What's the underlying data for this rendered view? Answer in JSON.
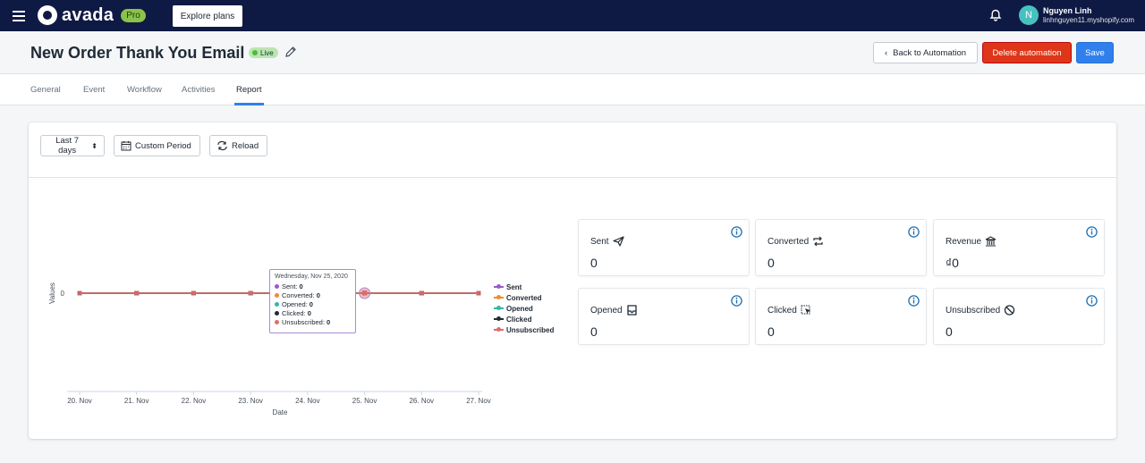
{
  "topbar": {
    "logo_text": "avada",
    "plan_badge": "Pro",
    "explore_label": "Explore plans",
    "user_initial": "N",
    "user_name": "Nguyen Linh",
    "user_shop": "linhnguyen11.myshopify.com"
  },
  "header": {
    "title": "New Order Thank You Email",
    "status": "Live",
    "back_label": "Back to Automation",
    "delete_label": "Delete automation",
    "save_label": "Save"
  },
  "tabs": [
    {
      "label": "General"
    },
    {
      "label": "Event"
    },
    {
      "label": "Workflow"
    },
    {
      "label": "Activities"
    },
    {
      "label": "Report"
    }
  ],
  "active_tab": "Report",
  "toolbar": {
    "period_label": "Last 7 days",
    "custom_period_label": "Custom Period",
    "reload_label": "Reload"
  },
  "chart_data": {
    "type": "line",
    "xlabel": "Date",
    "ylabel": "Values",
    "categories": [
      "20. Nov",
      "21. Nov",
      "22. Nov",
      "23. Nov",
      "24. Nov",
      "25. Nov",
      "26. Nov",
      "27. Nov"
    ],
    "y_ticks": [
      "0"
    ],
    "series": [
      {
        "name": "Sent",
        "color": "#9b59d0",
        "values": [
          0,
          0,
          0,
          0,
          0,
          0,
          0,
          0
        ]
      },
      {
        "name": "Converted",
        "color": "#f08c2a",
        "values": [
          0,
          0,
          0,
          0,
          0,
          0,
          0,
          0
        ]
      },
      {
        "name": "Opened",
        "color": "#37b6a7",
        "values": [
          0,
          0,
          0,
          0,
          0,
          0,
          0,
          0
        ]
      },
      {
        "name": "Clicked",
        "color": "#212b36",
        "values": [
          0,
          0,
          0,
          0,
          0,
          0,
          0,
          0
        ]
      },
      {
        "name": "Unsubscribed",
        "color": "#e06c6c",
        "values": [
          0,
          0,
          0,
          0,
          0,
          0,
          0,
          0
        ]
      }
    ],
    "tooltip": {
      "date": "Wednesday, Nov 25, 2020",
      "rows": [
        {
          "label": "Sent:",
          "value": "0",
          "color": "#9b59d0"
        },
        {
          "label": "Converted:",
          "value": "0",
          "color": "#f08c2a"
        },
        {
          "label": "Opened:",
          "value": "0",
          "color": "#37b6a7"
        },
        {
          "label": "Clicked:",
          "value": "0",
          "color": "#212b36"
        },
        {
          "label": "Unsubscribed:",
          "value": "0",
          "color": "#e06c6c"
        }
      ]
    }
  },
  "stats": [
    {
      "title": "Sent",
      "value": "0",
      "icon": "send-icon"
    },
    {
      "title": "Converted",
      "value": "0",
      "icon": "repeat-icon"
    },
    {
      "title": "Revenue",
      "value": "₫0",
      "icon": "bank-icon"
    },
    {
      "title": "Opened",
      "value": "0",
      "icon": "inbox-icon"
    },
    {
      "title": "Clicked",
      "value": "0",
      "icon": "cursor-click-icon"
    },
    {
      "title": "Unsubscribed",
      "value": "0",
      "icon": "block-icon"
    }
  ],
  "colors": {
    "topbar": "#0f1a44",
    "primary": "#2f80ed",
    "danger": "#de3618",
    "live": "#50b83c",
    "info": "#1f6fb2"
  }
}
